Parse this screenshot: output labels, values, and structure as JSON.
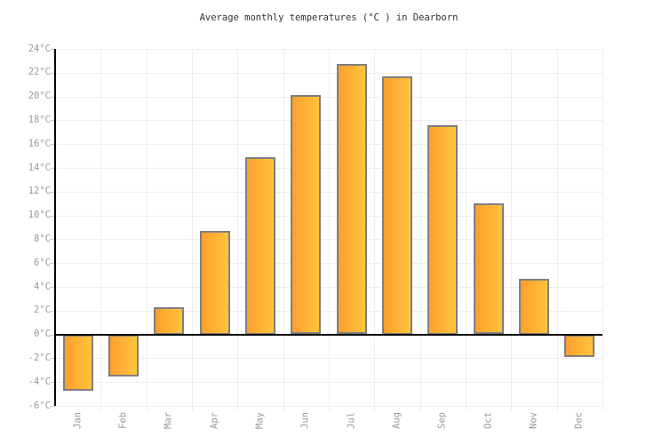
{
  "chart_data": {
    "type": "bar",
    "title": "Average monthly temperatures (°C ) in Dearborn",
    "categories": [
      "Jan",
      "Feb",
      "Mar",
      "Apr",
      "May",
      "Jun",
      "Jul",
      "Aug",
      "Sep",
      "Oct",
      "Nov",
      "Dec"
    ],
    "values": [
      -4.7,
      -3.5,
      2.3,
      8.7,
      14.9,
      20.1,
      22.7,
      21.7,
      17.6,
      11.0,
      4.7,
      -1.9
    ],
    "series_name": "Average monthly temperature",
    "unit": "°C",
    "xlabel": "",
    "ylabel": "",
    "ylim": [
      -6,
      24
    ],
    "ytick_step": 2,
    "ytick_labels": [
      "-6°C",
      "-4°C",
      "-2°C",
      "0°C",
      "2°C",
      "4°C",
      "6°C",
      "8°C",
      "10°C",
      "12°C",
      "14°C",
      "16°C",
      "18°C",
      "20°C",
      "22°C",
      "24°C"
    ],
    "grid": true,
    "legend_position": "none",
    "colors": {
      "bar_gradient_left": "#ff9e2e",
      "bar_gradient_right": "#ffc53c",
      "bar_border": "#7f7f7f",
      "gridline": "#eeeeee",
      "axis_line": "#000000",
      "zero_line": "#000000",
      "tick_mark": "#cccccc",
      "tick_label": "#999999",
      "title": "#333333",
      "background": "#ffffff"
    }
  }
}
